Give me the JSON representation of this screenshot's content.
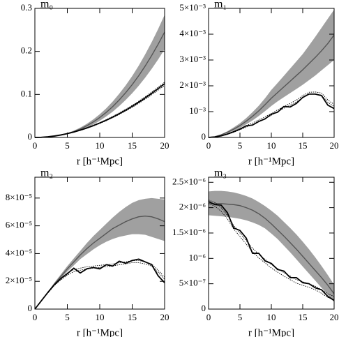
{
  "chart_data": [
    {
      "type": "line",
      "title": "m₀",
      "xlabel": "r [h⁻¹Mpc]",
      "x": [
        0,
        1,
        2,
        3,
        4,
        5,
        6,
        7,
        8,
        9,
        10,
        11,
        12,
        13,
        14,
        15,
        16,
        17,
        18,
        19,
        20
      ],
      "xlim": [
        0,
        20
      ],
      "xticks": [
        0,
        5,
        10,
        15,
        20
      ],
      "ylim": [
        0,
        0.3
      ],
      "yticks": [
        0,
        0.1,
        0.2,
        0.3
      ],
      "grid": false,
      "band": {
        "color": "#a0a0a0",
        "upper": [
          0,
          0.0002,
          0.0011,
          0.003,
          0.006,
          0.0103,
          0.0159,
          0.023,
          0.0316,
          0.0419,
          0.0539,
          0.0678,
          0.0835,
          0.1015,
          0.1211,
          0.1428,
          0.1667,
          0.1929,
          0.2214,
          0.2519,
          0.285
        ],
        "lower": [
          0,
          0.0002,
          0.0008,
          0.0022,
          0.0043,
          0.0074,
          0.0114,
          0.0165,
          0.0228,
          0.0301,
          0.0387,
          0.0488,
          0.0601,
          0.073,
          0.0871,
          0.1027,
          0.1199,
          0.1388,
          0.1593,
          0.1812,
          0.205
        ]
      },
      "series": [
        {
          "color": "#555555",
          "style": "solid",
          "values": [
            0,
            0.0002,
            0.001,
            0.0026,
            0.0051,
            0.0088,
            0.0136,
            0.0197,
            0.0272,
            0.036,
            0.0463,
            0.0583,
            0.0718,
            0.0872,
            0.1041,
            0.1227,
            0.1433,
            0.1659,
            0.1904,
            0.2166,
            0.245
          ]
        },
        {
          "color": "#000000",
          "style": "dotted",
          "values": [
            0,
            0.0004,
            0.0017,
            0.0036,
            0.0062,
            0.0094,
            0.0131,
            0.0176,
            0.0227,
            0.0284,
            0.0346,
            0.0414,
            0.0489,
            0.0568,
            0.0654,
            0.0745,
            0.0842,
            0.0945,
            0.1053,
            0.1167,
            0.1285
          ]
        },
        {
          "color": "#000000",
          "style": "dotted",
          "values": [
            0,
            0.0004,
            0.0015,
            0.0032,
            0.0056,
            0.0086,
            0.0121,
            0.0164,
            0.0211,
            0.0265,
            0.0324,
            0.0388,
            0.0459,
            0.0534,
            0.0615,
            0.0701,
            0.0792,
            0.0889,
            0.0991,
            0.1098,
            0.121
          ]
        },
        {
          "color": "#000000",
          "style": "solid",
          "values": [
            0,
            0.0004,
            0.0016,
            0.0034,
            0.0059,
            0.009,
            0.0126,
            0.017,
            0.0219,
            0.0274,
            0.0335,
            0.0401,
            0.0474,
            0.0551,
            0.0635,
            0.0724,
            0.0818,
            0.0918,
            0.1023,
            0.1134,
            0.125
          ]
        }
      ]
    },
    {
      "type": "line",
      "title": "m₁",
      "xlabel": "r [h⁻¹Mpc]",
      "x": [
        0,
        1,
        2,
        3,
        4,
        5,
        6,
        7,
        8,
        9,
        10,
        11,
        12,
        13,
        14,
        15,
        16,
        17,
        18,
        19,
        20
      ],
      "xlim": [
        0,
        20
      ],
      "xticks": [
        0,
        5,
        10,
        15,
        20
      ],
      "ylim": [
        0,
        0.005
      ],
      "yticks": [
        0,
        {
          "value": 0.001,
          "label": "10⁻³"
        },
        {
          "value": 0.002,
          "label": "2×10⁻³"
        },
        {
          "value": 0.003,
          "label": "3×10⁻³"
        },
        {
          "value": 0.004,
          "label": "4×10⁻³"
        },
        {
          "value": 0.005,
          "label": "5×10⁻³"
        }
      ],
      "grid": false,
      "band": {
        "color": "#a0a0a0",
        "upper": [
          0,
          4e-05,
          0.00012,
          0.00024,
          0.00039,
          0.00055,
          0.00075,
          0.00098,
          0.00123,
          0.00152,
          0.00184,
          0.00211,
          0.00239,
          0.00267,
          0.00295,
          0.00323,
          0.00356,
          0.0039,
          0.00425,
          0.0046,
          0.00495
        ],
        "lower": [
          0,
          2e-05,
          8e-05,
          0.00016,
          0.00026,
          0.00037,
          0.00051,
          0.00066,
          0.00083,
          0.00102,
          0.00122,
          0.0014,
          0.00156,
          0.00172,
          0.00188,
          0.00204,
          0.00222,
          0.0024,
          0.0026,
          0.0028,
          0.003
        ]
      },
      "series": [
        {
          "color": "#555555",
          "style": "solid",
          "values": [
            0,
            3e-05,
            0.0001,
            0.0002,
            0.00032,
            0.00046,
            0.00063,
            0.00082,
            0.00103,
            0.00127,
            0.00152,
            0.00174,
            0.00196,
            0.00218,
            0.0024,
            0.00262,
            0.00286,
            0.0031,
            0.00336,
            0.00364,
            0.00397
          ]
        },
        {
          "color": "#000000",
          "style": "dotted",
          "values": [
            0,
            2e-05,
            7e-05,
            0.00014,
            0.00024,
            0.00035,
            0.00046,
            0.00056,
            0.00068,
            0.0008,
            0.00093,
            0.00107,
            0.0012,
            0.00132,
            0.00145,
            0.00162,
            0.00175,
            0.00176,
            0.00172,
            0.00145,
            0.00128
          ]
        },
        {
          "color": "#000000",
          "style": "dotted",
          "values": [
            0,
            2e-05,
            6e-05,
            0.00012,
            0.0002,
            0.0003,
            0.0004,
            0.0005,
            0.00061,
            0.00073,
            0.00086,
            0.001,
            0.00113,
            0.00125,
            0.00138,
            0.00154,
            0.00167,
            0.00168,
            0.00164,
            0.00136,
            0.0012
          ]
        },
        {
          "color": "#000000",
          "style": "solid",
          "values": [
            0,
            2e-05,
            6e-05,
            0.00013,
            0.00022,
            0.00032,
            0.00045,
            0.00048,
            0.00062,
            0.00072,
            0.0009,
            0.00098,
            0.0012,
            0.00118,
            0.00132,
            0.00155,
            0.00168,
            0.00168,
            0.00162,
            0.00125,
            0.00112
          ]
        }
      ]
    },
    {
      "type": "line",
      "title": "m₂",
      "xlabel": "r [h⁻¹Mpc]",
      "x": [
        0,
        1,
        2,
        3,
        4,
        5,
        6,
        7,
        8,
        9,
        10,
        11,
        12,
        13,
        14,
        15,
        16,
        17,
        18,
        19,
        20
      ],
      "xlim": [
        0,
        20
      ],
      "xticks": [
        0,
        5,
        10,
        15,
        20
      ],
      "ylim": [
        0,
        9.5e-05
      ],
      "yticks": [
        0,
        {
          "value": 2e-05,
          "label": "2×10⁻⁵"
        },
        {
          "value": 4e-05,
          "label": "4×10⁻⁵"
        },
        {
          "value": 6e-05,
          "label": "6×10⁻⁵"
        },
        {
          "value": 8e-05,
          "label": "8×10⁻⁵"
        }
      ],
      "grid": false,
      "band": {
        "color": "#a0a0a0",
        "upper": [
          0,
          6.2e-06,
          1.25e-05,
          1.9e-05,
          2.5e-05,
          3.1e-05,
          3.65e-05,
          4.2e-05,
          4.75e-05,
          5.25e-05,
          5.7e-05,
          6.15e-05,
          6.6e-05,
          7e-05,
          7.35e-05,
          7.65e-05,
          7.85e-05,
          7.95e-05,
          8e-05,
          7.95e-05,
          7.9e-05
        ],
        "lower": [
          0,
          5.8e-06,
          1.15e-05,
          1.7e-05,
          2.2e-05,
          2.7e-05,
          3.15e-05,
          3.6e-05,
          3.95e-05,
          4.3e-05,
          4.6e-05,
          4.85e-05,
          5.05e-05,
          5.2e-05,
          5.3e-05,
          5.4e-05,
          5.4e-05,
          5.35e-05,
          5.2e-05,
          5.05e-05,
          4.9e-05
        ]
      },
      "series": [
        {
          "color": "#555555",
          "style": "solid",
          "values": [
            0,
            6e-06,
            1.2e-05,
            1.8e-05,
            2.35e-05,
            2.9e-05,
            3.4e-05,
            3.9e-05,
            4.35e-05,
            4.75e-05,
            5.1e-05,
            5.45e-05,
            5.8e-05,
            6.05e-05,
            6.3e-05,
            6.5e-05,
            6.65e-05,
            6.7e-05,
            6.65e-05,
            6.5e-05,
            6.3e-05
          ]
        },
        {
          "color": "#000000",
          "style": "dotted",
          "values": [
            0,
            6e-06,
            1.2e-05,
            1.75e-05,
            2.2e-05,
            2.6e-05,
            2.85e-05,
            2.95e-05,
            3.05e-05,
            3.1e-05,
            3.15e-05,
            3.2e-05,
            3.25e-05,
            3.35e-05,
            3.4e-05,
            3.5e-05,
            3.5e-05,
            3.4e-05,
            3.25e-05,
            2.8e-05,
            2.3e-05
          ]
        },
        {
          "color": "#000000",
          "style": "dotted",
          "values": [
            0,
            6e-06,
            1.15e-05,
            1.7e-05,
            2.1e-05,
            2.45e-05,
            2.7e-05,
            2.8e-05,
            2.9e-05,
            2.95e-05,
            3e-05,
            3.05e-05,
            3.1e-05,
            3.2e-05,
            3.25e-05,
            3.35e-05,
            3.35e-05,
            3.25e-05,
            3.1e-05,
            2.65e-05,
            2.15e-05
          ]
        },
        {
          "color": "#000000",
          "style": "solid",
          "values": [
            0,
            6e-06,
            1.2e-05,
            1.75e-05,
            2.2e-05,
            2.55e-05,
            2.95e-05,
            2.6e-05,
            2.9e-05,
            3e-05,
            2.9e-05,
            3.2e-05,
            3.1e-05,
            3.45e-05,
            3.3e-05,
            3.5e-05,
            3.6e-05,
            3.4e-05,
            3.2e-05,
            2.4e-05,
            1.9e-05
          ]
        }
      ]
    },
    {
      "type": "line",
      "title": "m₃",
      "xlabel": "r [h⁻¹Mpc]",
      "x": [
        0,
        1,
        2,
        3,
        4,
        5,
        6,
        7,
        8,
        9,
        10,
        11,
        12,
        13,
        14,
        15,
        16,
        17,
        18,
        19,
        20
      ],
      "xlim": [
        0,
        20
      ],
      "xticks": [
        0,
        5,
        10,
        15,
        20
      ],
      "ylim": [
        0,
        2.6e-06
      ],
      "yticks": [
        0,
        {
          "value": 5e-07,
          "label": "5×10⁻⁷"
        },
        {
          "value": 1e-06,
          "label": "10⁻⁶"
        },
        {
          "value": 1.5e-06,
          "label": "1.5×10⁻⁶"
        },
        {
          "value": 2e-06,
          "label": "2×10⁻⁶"
        },
        {
          "value": 2.5e-06,
          "label": "2.5×10⁻⁶"
        }
      ],
      "grid": false,
      "band": {
        "color": "#a0a0a0",
        "upper": [
          2.32e-06,
          2.33e-06,
          2.33e-06,
          2.32e-06,
          2.3e-06,
          2.27e-06,
          2.23e-06,
          2.18e-06,
          2.11e-06,
          2.03e-06,
          1.94e-06,
          1.84e-06,
          1.72e-06,
          1.6e-06,
          1.47e-06,
          1.33e-06,
          1.18e-06,
          1.02e-06,
          8.5e-07,
          6.7e-07,
          4.8e-07
        ],
        "lower": [
          1.85e-06,
          1.84e-06,
          1.83e-06,
          1.82e-06,
          1.8e-06,
          1.78e-06,
          1.75e-06,
          1.71e-06,
          1.66e-06,
          1.59e-06,
          1.49e-06,
          1.38e-06,
          1.25e-06,
          1.12e-06,
          9.8e-07,
          8.4e-07,
          7e-07,
          5.6e-07,
          4.2e-07,
          2.8e-07,
          1.4e-07
        ]
      },
      "series": [
        {
          "color": "#555555",
          "style": "solid",
          "values": [
            2.08e-06,
            2.08e-06,
            2.08e-06,
            2.07e-06,
            2.06e-06,
            2.04e-06,
            2e-06,
            1.95e-06,
            1.88e-06,
            1.79e-06,
            1.68e-06,
            1.56e-06,
            1.44e-06,
            1.31e-06,
            1.18e-06,
            1.04e-06,
            9e-07,
            7.6e-07,
            6.2e-07,
            4.7e-07,
            3e-07
          ]
        },
        {
          "color": "#000000",
          "style": "dotted",
          "values": [
            2.15e-06,
            2.1e-06,
            2e-06,
            1.85e-06,
            1.65e-06,
            1.5e-06,
            1.35e-06,
            1.2e-06,
            1.08e-06,
            9.8e-07,
            8.8e-07,
            8e-07,
            7.2e-07,
            6.5e-07,
            5.8e-07,
            5.4e-07,
            5e-07,
            4.5e-07,
            3.8e-07,
            3e-07,
            2.5e-07
          ]
        },
        {
          "color": "#000000",
          "style": "dotted",
          "values": [
            2.08e-06,
            2.03e-06,
            1.93e-06,
            1.78e-06,
            1.58e-06,
            1.43e-06,
            1.28e-06,
            1.13e-06,
            1.01e-06,
            9.1e-07,
            8.1e-07,
            7.3e-07,
            6.5e-07,
            5.8e-07,
            5.1e-07,
            4.7e-07,
            4.3e-07,
            3.8e-07,
            3.1e-07,
            2.3e-07,
            1.8e-07
          ]
        },
        {
          "color": "#000000",
          "style": "solid",
          "values": [
            2.12e-06,
            2.06e-06,
            2.05e-06,
            1.9e-06,
            1.6e-06,
            1.55e-06,
            1.4e-06,
            1.1e-06,
            1.1e-06,
            9.5e-07,
            9e-07,
            7.8e-07,
            7.5e-07,
            6.2e-07,
            6.2e-07,
            5.2e-07,
            5e-07,
            4.2e-07,
            3.8e-07,
            2.5e-07,
            1.7e-07
          ]
        }
      ]
    }
  ]
}
